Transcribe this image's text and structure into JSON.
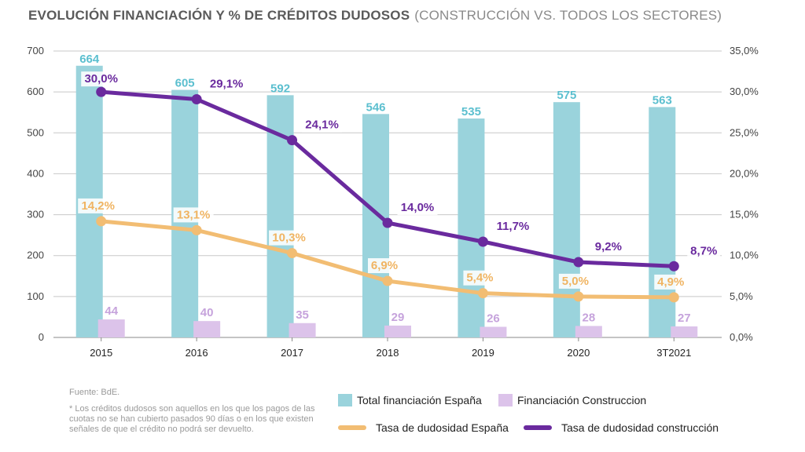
{
  "title": {
    "main": "EVOLUCIÓN FINANCIACIÓN Y % DE CRÉDITOS DUDOSOS",
    "sub": "(CONSTRUCCIÓN VS. TODOS LOS SECTORES)"
  },
  "chart_data": {
    "type": "bar+line",
    "categories": [
      "2015",
      "2016",
      "2017",
      "2018",
      "2019",
      "2020",
      "3T2021"
    ],
    "left_axis": {
      "ylim": [
        0,
        700
      ],
      "ticks": [
        "0",
        "100",
        "200",
        "300",
        "400",
        "500",
        "600",
        "700"
      ]
    },
    "right_axis": {
      "ylim": [
        0,
        35
      ],
      "ticks": [
        "0,0%",
        "5,0%",
        "10,0%",
        "15,0%",
        "20,0%",
        "25,0%",
        "30,0%",
        "35,0%"
      ]
    },
    "grid": true,
    "series": [
      {
        "name": "Total financiación España",
        "kind": "bar",
        "axis": "left",
        "color": "#9ad3dc",
        "label_color": "#5bbfcf",
        "values": [
          664,
          605,
          592,
          546,
          535,
          575,
          563
        ],
        "labels": [
          "664",
          "605",
          "592",
          "546",
          "535",
          "575",
          "563"
        ]
      },
      {
        "name": "Financiación Construccion",
        "kind": "bar",
        "axis": "left",
        "color": "#dcc3ea",
        "label_color": "#c6a3dc",
        "values": [
          44,
          40,
          35,
          29,
          26,
          28,
          27
        ],
        "labels": [
          "44",
          "40",
          "35",
          "29",
          "26",
          "28",
          "27"
        ]
      },
      {
        "name": "Tasa de dudosidad España",
        "kind": "line",
        "axis": "right",
        "color": "#f2bd73",
        "label_color": "#f0b462",
        "values": [
          14.2,
          13.1,
          10.3,
          6.9,
          5.4,
          5.0,
          4.9
        ],
        "labels": [
          "14,2%",
          "13,1%",
          "10,3%",
          "6,9%",
          "5,4%",
          "5,0%",
          "4,9%"
        ]
      },
      {
        "name": "Tasa de dudosidad construcción",
        "kind": "line",
        "axis": "right",
        "color": "#6a2a9e",
        "label_color": "#6a2a9e",
        "values": [
          30.0,
          29.1,
          24.1,
          14.0,
          11.7,
          9.2,
          8.7
        ],
        "labels": [
          "30,0%",
          "29,1%",
          "24,1%",
          "14,0%",
          "11,7%",
          "9,2%",
          "8,7%"
        ]
      }
    ]
  },
  "notes": {
    "source": "Fuente: BdE.",
    "footnote": "* Los créditos dudosos son aquellos en los que los pagos de las cuotas no se han cubierto pasados 90 días o en los que existen señales de que el crédito no podrá ser devuelto."
  },
  "legend": {
    "total": "Total financiación España",
    "construccion": "Financiación Construccion",
    "tasa_espana": "Tasa de dudosidad España",
    "tasa_construccion": "Tasa de dudosidad construcción"
  }
}
